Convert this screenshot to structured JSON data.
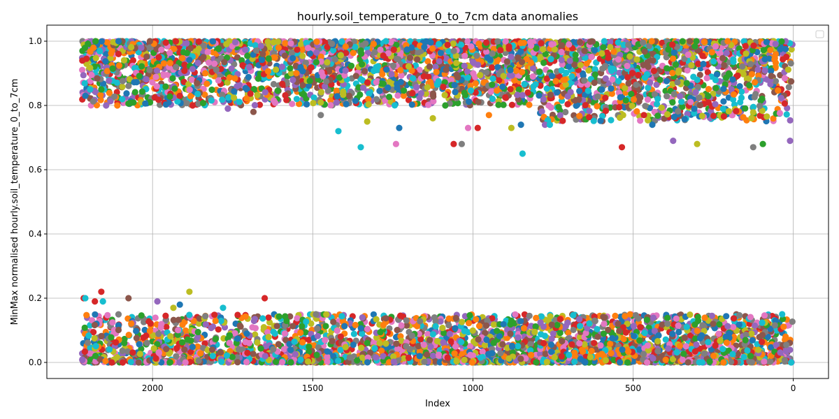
{
  "chart_data": {
    "type": "scatter",
    "title": "hourly.soil_temperature_0_to_7cm data anomalies",
    "xlabel": "Index",
    "ylabel": "MinMax normalised hourly.soil_temperature_0_to_7cm",
    "xlim": [
      2330,
      -110
    ],
    "ylim": [
      -0.05,
      1.05
    ],
    "x_axis_inverted": true,
    "x_ticks": [
      2000,
      1500,
      1000,
      500,
      0
    ],
    "y_ticks": [
      0.0,
      0.2,
      0.4,
      0.6,
      0.8,
      1.0
    ],
    "x_tick_labels": [
      "2000",
      "1500",
      "1000",
      "500",
      "0"
    ],
    "y_tick_labels": [
      "0.0",
      "0.2",
      "0.4",
      "0.6",
      "0.8",
      "1.0"
    ],
    "grid": true,
    "legend": "top-right (empty)",
    "palette": [
      "#1f77b4",
      "#ff7f0e",
      "#2ca02c",
      "#d62728",
      "#9467bd",
      "#8c564b",
      "#e377c2",
      "#7f7f7f",
      "#bcbd22",
      "#17becf"
    ],
    "distribution": {
      "x_range": [
        0,
        2220
      ],
      "upper_band": [
        0.8,
        1.0
      ],
      "lower_band": [
        0.0,
        0.15
      ],
      "point_count_approx": 9000
    },
    "outliers": [
      {
        "x": 2210,
        "y": 0.83
      },
      {
        "x": 2195,
        "y": 0.85
      },
      {
        "x": 2160,
        "y": 0.85
      },
      {
        "x": 2145,
        "y": 0.8
      },
      {
        "x": 2110,
        "y": 0.8
      },
      {
        "x": 1915,
        "y": 0.83
      },
      {
        "x": 1875,
        "y": 0.8
      },
      {
        "x": 1765,
        "y": 0.79
      },
      {
        "x": 1685,
        "y": 0.78
      },
      {
        "x": 1550,
        "y": 0.82
      },
      {
        "x": 1475,
        "y": 0.77
      },
      {
        "x": 1420,
        "y": 0.72
      },
      {
        "x": 1350,
        "y": 0.67
      },
      {
        "x": 1330,
        "y": 0.75
      },
      {
        "x": 1240,
        "y": 0.68
      },
      {
        "x": 1230,
        "y": 0.73
      },
      {
        "x": 1125,
        "y": 0.76
      },
      {
        "x": 1060,
        "y": 0.68
      },
      {
        "x": 1035,
        "y": 0.68
      },
      {
        "x": 1015,
        "y": 0.73
      },
      {
        "x": 985,
        "y": 0.73
      },
      {
        "x": 950,
        "y": 0.77
      },
      {
        "x": 880,
        "y": 0.73
      },
      {
        "x": 850,
        "y": 0.74
      },
      {
        "x": 845,
        "y": 0.65
      },
      {
        "x": 775,
        "y": 0.74
      },
      {
        "x": 760,
        "y": 0.74
      },
      {
        "x": 535,
        "y": 0.67
      },
      {
        "x": 440,
        "y": 0.74
      },
      {
        "x": 375,
        "y": 0.69
      },
      {
        "x": 300,
        "y": 0.68
      },
      {
        "x": 125,
        "y": 0.67
      },
      {
        "x": 95,
        "y": 0.68
      },
      {
        "x": 10,
        "y": 0.69
      },
      {
        "x": 2215,
        "y": 0.2
      },
      {
        "x": 2210,
        "y": 0.2
      },
      {
        "x": 2180,
        "y": 0.19
      },
      {
        "x": 2160,
        "y": 0.22
      },
      {
        "x": 2155,
        "y": 0.19
      },
      {
        "x": 2075,
        "y": 0.2
      },
      {
        "x": 1985,
        "y": 0.19
      },
      {
        "x": 1935,
        "y": 0.17
      },
      {
        "x": 1915,
        "y": 0.18
      },
      {
        "x": 1885,
        "y": 0.22
      },
      {
        "x": 1780,
        "y": 0.17
      },
      {
        "x": 1650,
        "y": 0.2
      },
      {
        "x": 1490,
        "y": 0.15
      },
      {
        "x": 1345,
        "y": 0.14
      },
      {
        "x": 1120,
        "y": 0.14
      },
      {
        "x": 880,
        "y": 0.13
      },
      {
        "x": 620,
        "y": 0.13
      },
      {
        "x": 250,
        "y": 0.12
      }
    ]
  }
}
